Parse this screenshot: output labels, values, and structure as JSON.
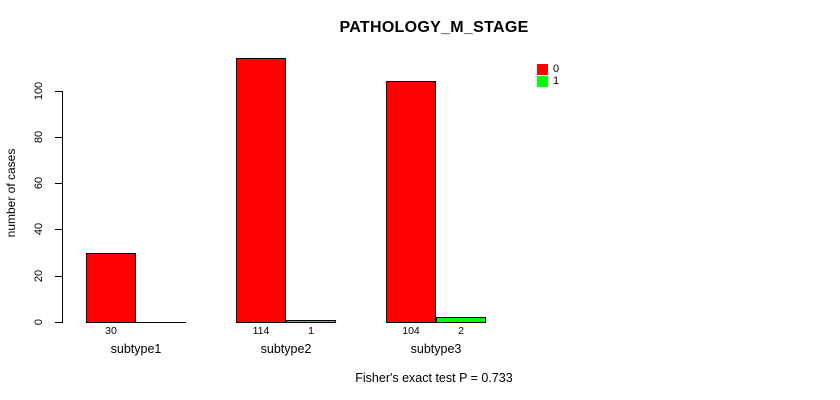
{
  "chart_data": {
    "type": "bar",
    "title": "PATHOLOGY_M_STAGE",
    "xlabel": "",
    "ylabel": "number of cases",
    "categories": [
      "subtype1",
      "subtype2",
      "subtype3"
    ],
    "series": [
      {
        "name": "0",
        "color": "#ff0000",
        "values": [
          30,
          114,
          104
        ]
      },
      {
        "name": "1",
        "color": "#00ff00",
        "values": [
          0,
          1,
          2
        ]
      }
    ],
    "bar_value_labels": [
      [
        "30",
        ""
      ],
      [
        "114",
        "1"
      ],
      [
        "104",
        "2"
      ]
    ],
    "yticks": [
      0,
      20,
      40,
      60,
      80,
      100
    ],
    "ylim": [
      0,
      115
    ],
    "grid": false,
    "legend_position": "top-right",
    "annotation": "Fisher's exact test P = 0.733"
  },
  "colors": {
    "series_0": "#ff0000",
    "series_1": "#00ff00",
    "axis": "#000000",
    "background": "#ffffff",
    "text": "#000000"
  }
}
